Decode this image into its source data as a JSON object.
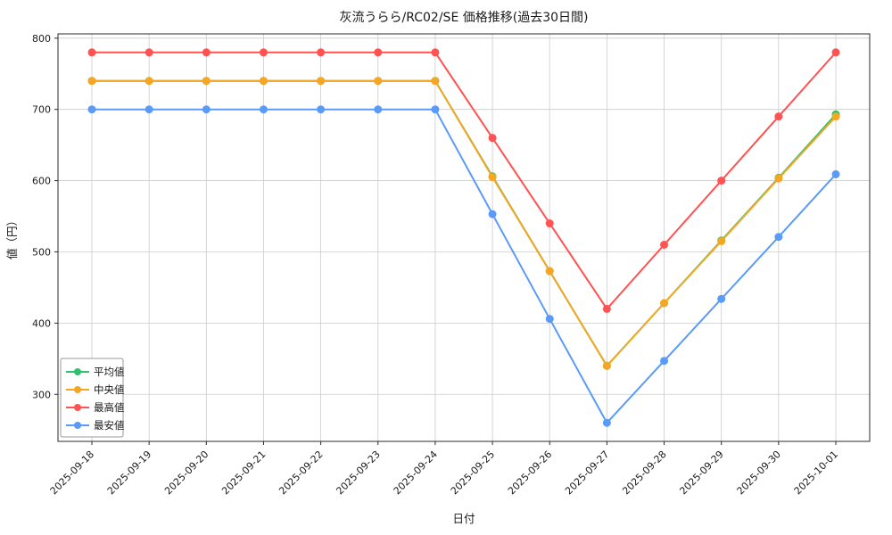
{
  "chart_data": {
    "type": "line",
    "title": "灰流うらら/RC02/SE 価格推移(過去30日間)",
    "xlabel": "日付",
    "ylabel": "値（円）",
    "x": [
      "2025-09-18",
      "2025-09-19",
      "2025-09-20",
      "2025-09-21",
      "2025-09-22",
      "2025-09-23",
      "2025-09-24",
      "2025-09-25",
      "2025-09-26",
      "2025-09-27",
      "2025-09-28",
      "2025-09-29",
      "2025-09-30",
      "2025-10-01"
    ],
    "series": [
      {
        "name": "平均値",
        "color": "#2dc26b",
        "values": [
          740,
          740,
          740,
          740,
          740,
          740,
          740,
          606,
          473,
          340,
          428,
          516,
          604,
          693
        ]
      },
      {
        "name": "中央値",
        "color": "#f5a623",
        "values": [
          740,
          740,
          740,
          740,
          740,
          740,
          740,
          605,
          473,
          340,
          428,
          515,
          603,
          690
        ]
      },
      {
        "name": "最高値",
        "color": "#ff5252",
        "values": [
          780,
          780,
          780,
          780,
          780,
          780,
          780,
          660,
          540,
          420,
          510,
          600,
          690,
          780
        ]
      },
      {
        "name": "最安値",
        "color": "#5b9bf8",
        "values": [
          700,
          700,
          700,
          700,
          700,
          700,
          700,
          553,
          406,
          260,
          347,
          434,
          521,
          609
        ]
      }
    ],
    "ylim": [
      234,
      806
    ],
    "yticks": [
      300,
      400,
      500,
      600,
      700,
      800
    ],
    "grid": true,
    "legend_position": "lower left",
    "colors": {
      "grid": "#cccccc",
      "axis": "#2b2b2b",
      "legend_border": "#9a9a9a"
    }
  }
}
